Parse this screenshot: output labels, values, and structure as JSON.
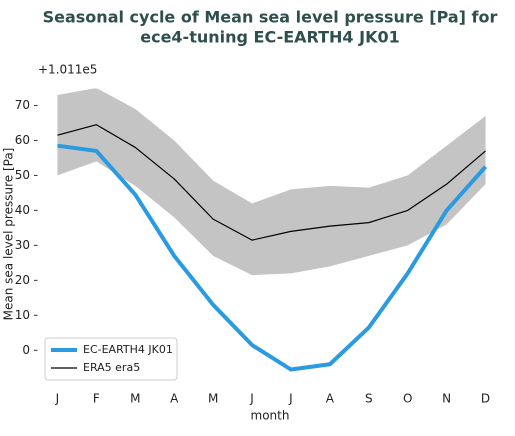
{
  "chart_data": {
    "type": "line",
    "title": [
      "Seasonal cycle of Mean sea level pressure [Pa] for",
      "ece4-tuning EC-EARTH4 JK01"
    ],
    "offset_label": "+1.011e5",
    "xlabel": "month",
    "ylabel": "Mean sea level pressure [Pa]",
    "categories": [
      "J",
      "F",
      "M",
      "A",
      "M",
      "J",
      "J",
      "A",
      "S",
      "O",
      "N",
      "D"
    ],
    "series": [
      {
        "name": "EC-EARTH4 JK01",
        "color": "#2a9be0",
        "width": 4,
        "values": [
          58.5,
          57,
          44.5,
          27,
          13,
          1.5,
          -5.5,
          -4,
          6.5,
          22,
          40,
          52.5
        ]
      },
      {
        "name": "ERA5 era5",
        "color": "#000000",
        "width": 1.2,
        "values": [
          61.5,
          64.5,
          58,
          49,
          37.5,
          31.5,
          34,
          35.5,
          36.5,
          40,
          47.5,
          57
        ]
      }
    ],
    "band": {
      "color": "#c4c4c4",
      "upper": [
        73,
        75,
        69,
        60,
        48.5,
        42,
        46,
        47,
        46.5,
        50,
        58.5,
        67
      ],
      "lower": [
        50,
        54,
        47,
        38,
        27,
        21.5,
        22,
        24,
        27,
        30,
        36,
        47.5
      ]
    },
    "ylim": [
      -8.5,
      75
    ],
    "yticks": [
      0,
      10,
      20,
      30,
      40,
      50,
      60,
      70
    ],
    "legend": "lower left"
  }
}
